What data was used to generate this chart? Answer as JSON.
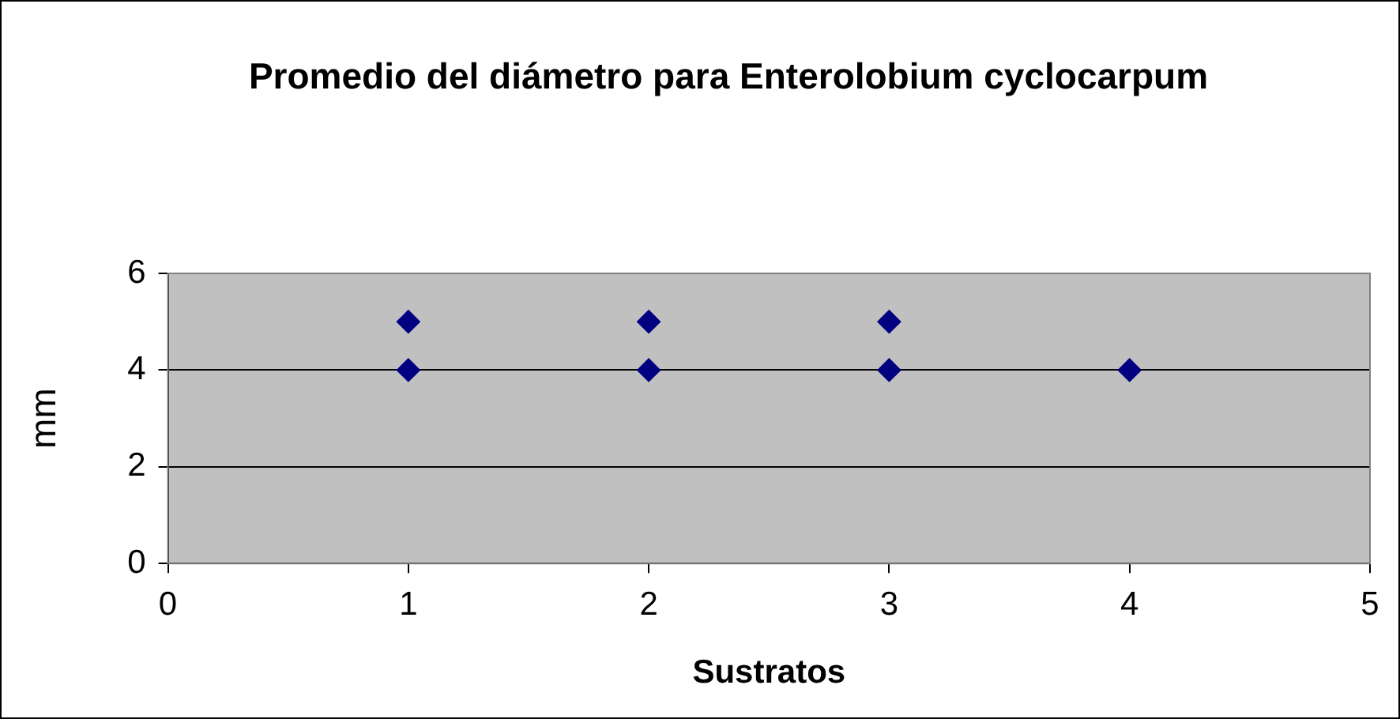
{
  "chart_data": {
    "type": "scatter",
    "title": "Promedio del diámetro para Enterolobium cyclocarpum",
    "xlabel": "Sustratos",
    "ylabel": "mm",
    "x": [
      1,
      1,
      2,
      2,
      3,
      3,
      4
    ],
    "values": [
      4,
      5,
      4,
      5,
      4,
      5,
      4
    ],
    "color": "#000080",
    "marker": "diamond",
    "grid": "y",
    "xlim": [
      0,
      5
    ],
    "xticks": [
      0,
      1,
      2,
      3,
      4,
      5
    ],
    "ylim": [
      0,
      6
    ],
    "yticks": [
      0,
      2,
      4,
      6
    ]
  }
}
